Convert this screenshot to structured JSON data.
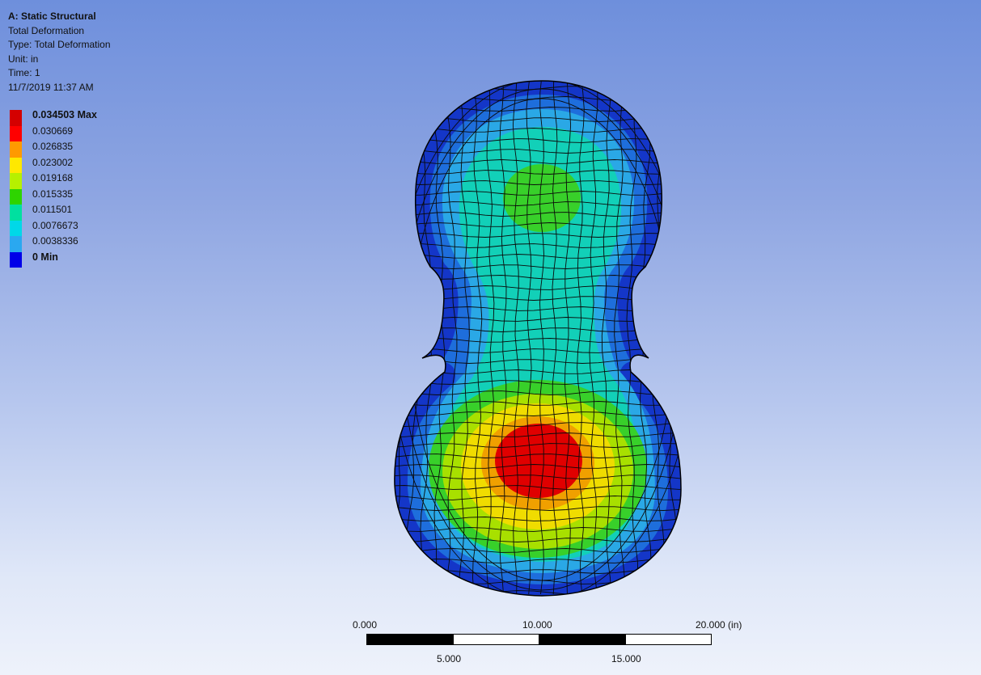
{
  "header": {
    "analysis": "A: Static Structural",
    "result_name": "Total Deformation",
    "type_line": "Type: Total Deformation",
    "unit_line": "Unit: in",
    "time_line": "Time: 1",
    "timestamp": "11/7/2019 11:37 AM"
  },
  "legend": {
    "entries": [
      {
        "label": "0.034503 Max",
        "color": "#d40000",
        "bold": true
      },
      {
        "label": "0.030669",
        "color": "#ff0000"
      },
      {
        "label": "0.026835",
        "color": "#ff9a00"
      },
      {
        "label": "0.023002",
        "color": "#ffe800"
      },
      {
        "label": "0.019168",
        "color": "#b6f000"
      },
      {
        "label": "0.015335",
        "color": "#2ed400"
      },
      {
        "label": "0.011501",
        "color": "#00e0a0"
      },
      {
        "label": "0.0076673",
        "color": "#00d8e8"
      },
      {
        "label": "0.0038336",
        "color": "#2aa8f0"
      },
      {
        "label": "0 Min",
        "color": "#0000e8",
        "bold": true
      }
    ]
  },
  "contour_colors": {
    "edge": "#1436c8",
    "outer": "#1e6edc",
    "band1": "#2aa8e6",
    "band2": "#12d0b8",
    "band3": "#38d02a",
    "band4": "#a8e000",
    "band5": "#f0dc00",
    "band6": "#f0a000",
    "max": "#e00000"
  },
  "scale_bar": {
    "label_0": "0.000",
    "label_10": "10.000",
    "label_20": "20.000 (in)",
    "label_5": "5.000",
    "label_15": "15.000"
  }
}
